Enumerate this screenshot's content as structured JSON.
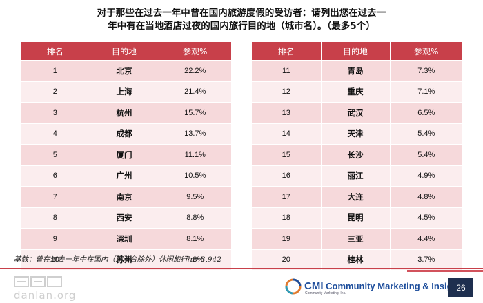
{
  "title": {
    "line1": "对于那些在过去一年中曾在国内旅游度假的受访者：请列出您在过去一",
    "line2": "年中有在当地酒店过夜的国内旅行目的地（城市名）。（最多5个）"
  },
  "table_headers": [
    "排名",
    "目的地",
    "参观%"
  ],
  "left_table": [
    {
      "rank": "1",
      "city": "北京",
      "pct": "22.2%"
    },
    {
      "rank": "2",
      "city": "上海",
      "pct": "21.4%"
    },
    {
      "rank": "3",
      "city": "杭州",
      "pct": "15.7%"
    },
    {
      "rank": "4",
      "city": "成都",
      "pct": "13.7%"
    },
    {
      "rank": "5",
      "city": "厦门",
      "pct": "11.1%"
    },
    {
      "rank": "6",
      "city": "广州",
      "pct": "10.5%"
    },
    {
      "rank": "7",
      "city": "南京",
      "pct": "9.5%"
    },
    {
      "rank": "8",
      "city": "西安",
      "pct": "8.8%"
    },
    {
      "rank": "9",
      "city": "深圳",
      "pct": "8.1%"
    },
    {
      "rank": "10",
      "city": "苏州",
      "pct": "7.8%"
    }
  ],
  "right_table": [
    {
      "rank": "11",
      "city": "青岛",
      "pct": "7.3%"
    },
    {
      "rank": "12",
      "city": "重庆",
      "pct": "7.1%"
    },
    {
      "rank": "13",
      "city": "武汉",
      "pct": "6.5%"
    },
    {
      "rank": "14",
      "city": "天津",
      "pct": "5.4%"
    },
    {
      "rank": "15",
      "city": "长沙",
      "pct": "5.4%"
    },
    {
      "rank": "16",
      "city": "丽江",
      "pct": "4.9%"
    },
    {
      "rank": "17",
      "city": "大连",
      "pct": "4.8%"
    },
    {
      "rank": "18",
      "city": "昆明",
      "pct": "4.5%"
    },
    {
      "rank": "19",
      "city": "三亚",
      "pct": "4.4%"
    },
    {
      "rank": "20",
      "city": "桂林",
      "pct": "3.7%"
    }
  ],
  "base_note": "基数：曾在过去一年中在国内（港澳台除外）休闲旅行 n=3,942",
  "watermark": {
    "text": "danlan.org"
  },
  "logo": {
    "cmi": "CMI",
    "name": "Community Marketing & Insights",
    "tagline": "Community Marketing, Inc."
  },
  "page_number": "26",
  "colors": {
    "header_red": "#c8404a",
    "row_pink_dark": "#f6d9db",
    "row_pink_light": "#fbedee",
    "title_rule_teal": "#2e9bb8",
    "logo_blue": "#1e4e9c",
    "page_box_navy": "#1e2f4f"
  }
}
